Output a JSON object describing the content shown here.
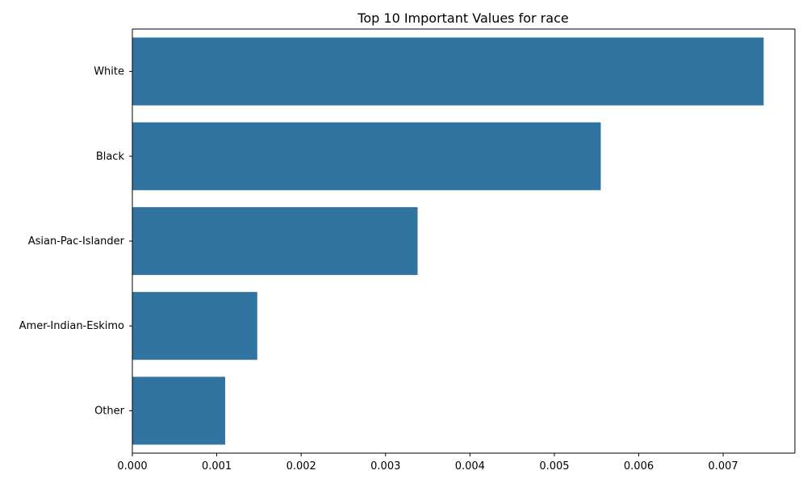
{
  "chart_data": {
    "type": "bar",
    "orientation": "horizontal",
    "title": "Top 10 Important Values for race",
    "xlabel": "",
    "ylabel": "",
    "categories": [
      "White",
      "Black",
      "Asian-Pac-Islander",
      "Amer-Indian-Eskimo",
      "Other"
    ],
    "values": [
      0.00748,
      0.00555,
      0.00338,
      0.00148,
      0.0011
    ],
    "xlim": [
      0,
      0.00785
    ],
    "xticks": [
      "0.000",
      "0.001",
      "0.002",
      "0.003",
      "0.004",
      "0.005",
      "0.006",
      "0.007"
    ],
    "grid": false,
    "legend": "none",
    "bar_color": "#3274a1",
    "axis_color": "#000000"
  }
}
